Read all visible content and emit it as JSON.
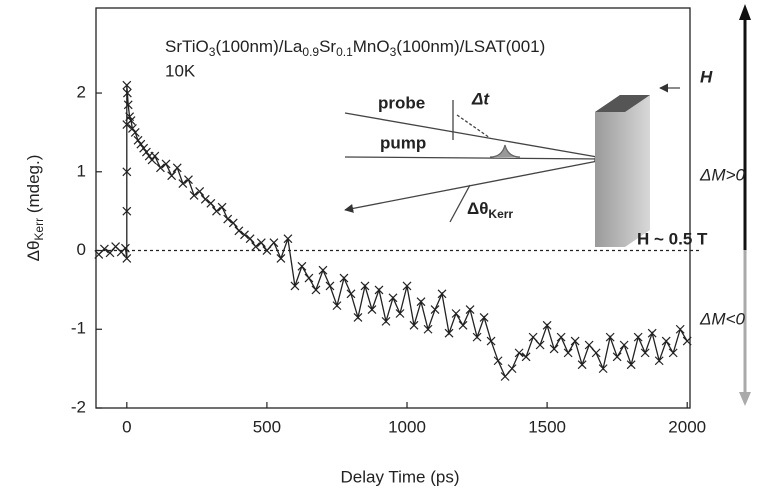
{
  "chart_data": {
    "type": "line",
    "sample": [
      "SrTiO",
      "3",
      "(100nm)/La",
      "0.9",
      "Sr",
      "0.1",
      "MnO",
      "3",
      "(100nm)/LSAT(001)"
    ],
    "temperature": "10K",
    "x_label": "Delay Time (ps)",
    "y_label": [
      "Δθ",
      "Kerr",
      " (mdeg.)"
    ],
    "inset": {
      "probe": "probe",
      "delay": "Δt",
      "pump": "pump",
      "kerr": [
        "Δθ",
        "Kerr"
      ],
      "field": "H",
      "field_value": "H ~ 0.5 T"
    },
    "magnetization": {
      "up": "ΔM>0",
      "down": "ΔM<0"
    },
    "hline": 0,
    "xlim": [
      -110,
      2010
    ],
    "ylim": [
      -2,
      3.08
    ],
    "xticks": [
      0,
      500,
      1000,
      1500,
      2000
    ],
    "yticks": [
      -2,
      -1,
      0,
      1,
      2
    ],
    "series": [
      {
        "color": "#222222",
        "marker": "x",
        "x": [
          -100,
          -80,
          -60,
          -40,
          -20,
          -5,
          0,
          0,
          0,
          0,
          0,
          2,
          5,
          10,
          15,
          20,
          30,
          40,
          50,
          60,
          70,
          80,
          90,
          100,
          120,
          140,
          160,
          180,
          200,
          220,
          240,
          260,
          280,
          300,
          320,
          340,
          360,
          380,
          400,
          420,
          440,
          460,
          480,
          500,
          525,
          550,
          575,
          600,
          625,
          650,
          675,
          700,
          725,
          750,
          775,
          800,
          825,
          850,
          875,
          900,
          925,
          950,
          975,
          1000,
          1025,
          1050,
          1075,
          1100,
          1125,
          1150,
          1175,
          1200,
          1225,
          1250,
          1275,
          1300,
          1325,
          1350,
          1375,
          1400,
          1425,
          1450,
          1475,
          1500,
          1525,
          1550,
          1575,
          1600,
          1625,
          1650,
          1675,
          1700,
          1725,
          1750,
          1775,
          1800,
          1825,
          1850,
          1875,
          1900,
          1925,
          1950,
          1975,
          2000
        ],
        "values": [
          -0.05,
          0.02,
          -0.03,
          0.05,
          -0.02,
          0.03,
          -0.1,
          0.5,
          1.0,
          1.6,
          2.1,
          2.0,
          1.85,
          1.7,
          1.65,
          1.55,
          1.5,
          1.4,
          1.35,
          1.3,
          1.25,
          1.2,
          1.15,
          1.2,
          1.05,
          1.1,
          0.95,
          1.05,
          0.85,
          0.9,
          0.7,
          0.75,
          0.65,
          0.6,
          0.5,
          0.55,
          0.4,
          0.35,
          0.25,
          0.2,
          0.15,
          0.05,
          0.1,
          0.0,
          0.1,
          -0.1,
          0.15,
          -0.45,
          -0.2,
          -0.35,
          -0.5,
          -0.25,
          -0.45,
          -0.7,
          -0.35,
          -0.55,
          -0.85,
          -0.45,
          -0.75,
          -0.5,
          -0.9,
          -0.6,
          -0.8,
          -0.45,
          -0.95,
          -0.65,
          -1.0,
          -0.75,
          -0.55,
          -1.05,
          -0.8,
          -0.95,
          -0.75,
          -1.1,
          -0.85,
          -1.15,
          -1.4,
          -1.6,
          -1.5,
          -1.3,
          -1.35,
          -1.1,
          -1.2,
          -0.95,
          -1.25,
          -1.1,
          -1.3,
          -1.15,
          -1.45,
          -1.2,
          -1.3,
          -1.5,
          -1.1,
          -1.35,
          -1.2,
          -1.45,
          -1.1,
          -1.3,
          -1.05,
          -1.4,
          -1.15,
          -1.3,
          -1.0,
          -1.15
        ]
      }
    ]
  }
}
